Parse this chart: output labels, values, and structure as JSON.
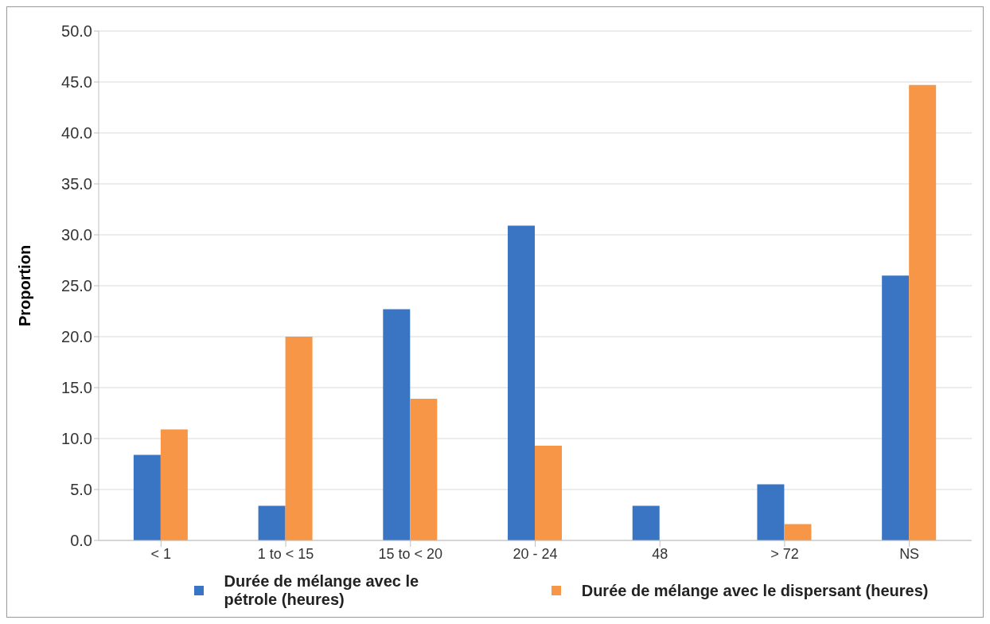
{
  "chart_data": {
    "type": "bar",
    "ylabel": "Proportion",
    "categories": [
      "< 1",
      "1 to < 15",
      "15 to < 20",
      "20 - 24",
      "48",
      "> 72",
      "NS"
    ],
    "series": [
      {
        "name": "Durée de mélange avec le pétrole (heures)",
        "color": "#3a75c4",
        "values": [
          8.4,
          3.4,
          22.7,
          30.9,
          3.4,
          5.5,
          26.0
        ]
      },
      {
        "name": "Durée de mélange avec le dispersant (heures)",
        "color": "#f79646",
        "values": [
          10.9,
          20.0,
          13.9,
          9.3,
          0,
          1.6,
          44.7
        ]
      }
    ],
    "ylim": [
      0,
      50
    ],
    "yticks": [
      {
        "value": 0,
        "label": "0.0"
      },
      {
        "value": 5,
        "label": "5.0"
      },
      {
        "value": 10,
        "label": "10.0"
      },
      {
        "value": 15,
        "label": "15.0"
      },
      {
        "value": 20,
        "label": "20.0"
      },
      {
        "value": 25,
        "label": "25.0"
      },
      {
        "value": 30,
        "label": "30.0"
      },
      {
        "value": 35,
        "label": "35.0"
      },
      {
        "value": 40,
        "label": "40.0"
      },
      {
        "value": 45,
        "label": "45.0"
      },
      {
        "value": 50,
        "label": "50.0"
      }
    ],
    "grid": "y",
    "legend": "bottom"
  }
}
